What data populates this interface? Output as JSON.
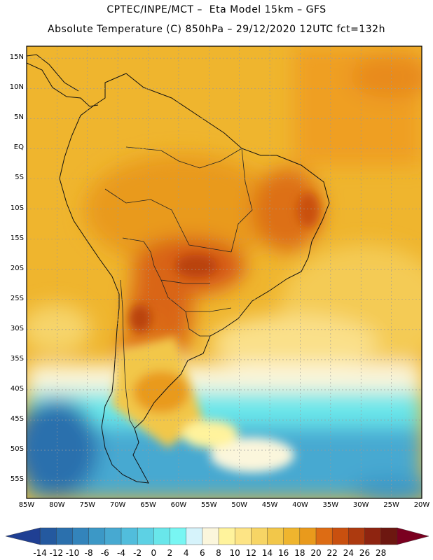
{
  "header": {
    "line1": "CPTEC/INPE/MCT –  Eta Model 15km – GFS",
    "line2": "Absolute Temperature (C) 850hPa – 29/12/2020 12UTC fct=132h"
  },
  "map": {
    "region": "South America",
    "lon_range_deg": [
      -85,
      -20
    ],
    "lat_range_deg": [
      -58,
      17
    ],
    "lat_labels": [
      "15N",
      "10N",
      "5N",
      "EQ",
      "5S",
      "10S",
      "15S",
      "20S",
      "25S",
      "30S",
      "35S",
      "40S",
      "45S",
      "50S",
      "55S"
    ],
    "lat_values": [
      15,
      10,
      5,
      0,
      -5,
      -10,
      -15,
      -20,
      -25,
      -30,
      -35,
      -40,
      -45,
      -50,
      -55
    ],
    "lon_labels": [
      "85W",
      "80W",
      "75W",
      "70W",
      "65W",
      "60W",
      "55W",
      "50W",
      "45W",
      "40W",
      "35W",
      "30W",
      "25W",
      "20W"
    ],
    "lon_values": [
      -85,
      -80,
      -75,
      -70,
      -65,
      -60,
      -55,
      -50,
      -45,
      -40,
      -35,
      -30,
      -25,
      -20
    ]
  },
  "colorbar": {
    "units": "°C",
    "labels": [
      "-14",
      "-12",
      "-10",
      "-8",
      "-6",
      "-4",
      "-2",
      "0",
      "2",
      "4",
      "6",
      "8",
      "10",
      "12",
      "14",
      "16",
      "18",
      "20",
      "22",
      "24",
      "26",
      "28"
    ],
    "colors": [
      "#1f3f93",
      "#24599f",
      "#2b70ad",
      "#3384bb",
      "#3c98c6",
      "#47a9d1",
      "#51bddc",
      "#5dd1e4",
      "#69e6ea",
      "#78f6f3",
      "#d6f3fb",
      "#fbf6dc",
      "#fff39c",
      "#fde485",
      "#f7d565",
      "#f2c74a",
      "#efb52e",
      "#e99a1c",
      "#dd6c14",
      "#c9500f",
      "#ad3a0f",
      "#8e2410",
      "#6d1710",
      "#7a0020"
    ]
  }
}
